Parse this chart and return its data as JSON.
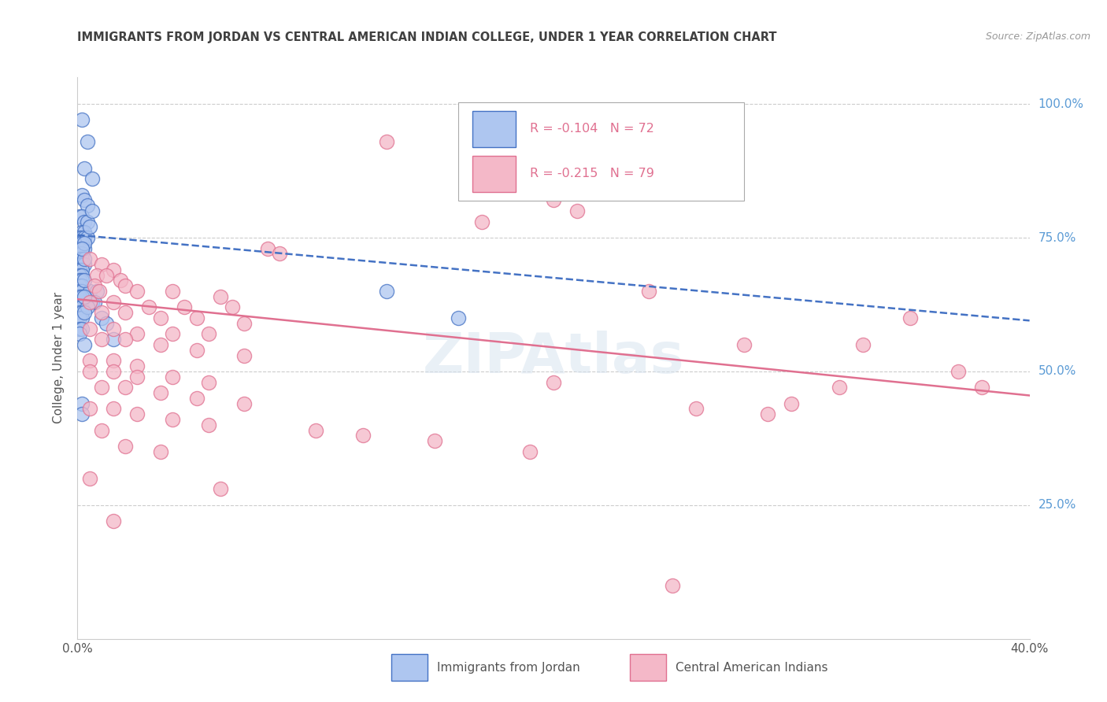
{
  "title": "IMMIGRANTS FROM JORDAN VS CENTRAL AMERICAN INDIAN COLLEGE, UNDER 1 YEAR CORRELATION CHART",
  "source": "Source: ZipAtlas.com",
  "ylabel": "College, Under 1 year",
  "legend_blue_r": "-0.104",
  "legend_blue_n": "72",
  "legend_pink_r": "-0.215",
  "legend_pink_n": "79",
  "legend_label_blue": "Immigrants from Jordan",
  "legend_label_pink": "Central American Indians",
  "xlim": [
    0.0,
    0.4
  ],
  "ylim": [
    0.0,
    1.05
  ],
  "yticks": [
    0.0,
    0.25,
    0.5,
    0.75,
    1.0
  ],
  "yticklabels": [
    "",
    "25.0%",
    "50.0%",
    "75.0%",
    "100.0%"
  ],
  "xticks": [
    0.0,
    0.1,
    0.2,
    0.3,
    0.4
  ],
  "xticklabels": [
    "0.0%",
    "",
    "",
    "",
    "40.0%"
  ],
  "background_color": "#ffffff",
  "grid_color": "#cccccc",
  "blue_face_color": "#aec6f0",
  "blue_edge_color": "#4472c4",
  "pink_face_color": "#f4b8c8",
  "pink_edge_color": "#e07090",
  "right_tick_color": "#5b9bd5",
  "title_color": "#404040",
  "watermark_color": "#d8e4f0",
  "blue_scatter": [
    [
      0.002,
      0.97
    ],
    [
      0.004,
      0.93
    ],
    [
      0.003,
      0.88
    ],
    [
      0.006,
      0.86
    ],
    [
      0.002,
      0.83
    ],
    [
      0.003,
      0.82
    ],
    [
      0.004,
      0.81
    ],
    [
      0.001,
      0.79
    ],
    [
      0.002,
      0.79
    ],
    [
      0.003,
      0.78
    ],
    [
      0.004,
      0.78
    ],
    [
      0.002,
      0.76
    ],
    [
      0.003,
      0.76
    ],
    [
      0.001,
      0.75
    ],
    [
      0.002,
      0.75
    ],
    [
      0.003,
      0.75
    ],
    [
      0.001,
      0.74
    ],
    [
      0.002,
      0.74
    ],
    [
      0.001,
      0.73
    ],
    [
      0.002,
      0.73
    ],
    [
      0.003,
      0.73
    ],
    [
      0.001,
      0.72
    ],
    [
      0.002,
      0.72
    ],
    [
      0.001,
      0.71
    ],
    [
      0.002,
      0.71
    ],
    [
      0.001,
      0.7
    ],
    [
      0.002,
      0.7
    ],
    [
      0.003,
      0.7
    ],
    [
      0.001,
      0.69
    ],
    [
      0.002,
      0.69
    ],
    [
      0.001,
      0.68
    ],
    [
      0.002,
      0.68
    ],
    [
      0.001,
      0.67
    ],
    [
      0.002,
      0.67
    ],
    [
      0.001,
      0.66
    ],
    [
      0.002,
      0.66
    ],
    [
      0.001,
      0.65
    ],
    [
      0.002,
      0.65
    ],
    [
      0.005,
      0.65
    ],
    [
      0.001,
      0.64
    ],
    [
      0.002,
      0.64
    ],
    [
      0.006,
      0.63
    ],
    [
      0.001,
      0.62
    ],
    [
      0.002,
      0.62
    ],
    [
      0.001,
      0.61
    ],
    [
      0.002,
      0.61
    ],
    [
      0.001,
      0.6
    ],
    [
      0.002,
      0.6
    ],
    [
      0.01,
      0.6
    ],
    [
      0.001,
      0.58
    ],
    [
      0.002,
      0.58
    ],
    [
      0.001,
      0.57
    ],
    [
      0.003,
      0.55
    ],
    [
      0.002,
      0.44
    ],
    [
      0.002,
      0.42
    ],
    [
      0.008,
      0.65
    ],
    [
      0.012,
      0.59
    ],
    [
      0.007,
      0.63
    ],
    [
      0.003,
      0.67
    ],
    [
      0.004,
      0.62
    ],
    [
      0.003,
      0.61
    ],
    [
      0.015,
      0.56
    ],
    [
      0.003,
      0.64
    ],
    [
      0.004,
      0.75
    ],
    [
      0.005,
      0.77
    ],
    [
      0.006,
      0.8
    ],
    [
      0.13,
      0.65
    ],
    [
      0.16,
      0.6
    ],
    [
      0.003,
      0.71
    ],
    [
      0.003,
      0.74
    ],
    [
      0.002,
      0.73
    ]
  ],
  "pink_scatter": [
    [
      0.13,
      0.93
    ],
    [
      0.2,
      0.82
    ],
    [
      0.21,
      0.8
    ],
    [
      0.17,
      0.78
    ],
    [
      0.08,
      0.73
    ],
    [
      0.085,
      0.72
    ],
    [
      0.005,
      0.71
    ],
    [
      0.01,
      0.7
    ],
    [
      0.015,
      0.69
    ],
    [
      0.008,
      0.68
    ],
    [
      0.012,
      0.68
    ],
    [
      0.018,
      0.67
    ],
    [
      0.007,
      0.66
    ],
    [
      0.02,
      0.66
    ],
    [
      0.009,
      0.65
    ],
    [
      0.025,
      0.65
    ],
    [
      0.04,
      0.65
    ],
    [
      0.06,
      0.64
    ],
    [
      0.005,
      0.63
    ],
    [
      0.015,
      0.63
    ],
    [
      0.03,
      0.62
    ],
    [
      0.045,
      0.62
    ],
    [
      0.065,
      0.62
    ],
    [
      0.01,
      0.61
    ],
    [
      0.02,
      0.61
    ],
    [
      0.035,
      0.6
    ],
    [
      0.05,
      0.6
    ],
    [
      0.07,
      0.59
    ],
    [
      0.005,
      0.58
    ],
    [
      0.015,
      0.58
    ],
    [
      0.025,
      0.57
    ],
    [
      0.04,
      0.57
    ],
    [
      0.055,
      0.57
    ],
    [
      0.01,
      0.56
    ],
    [
      0.02,
      0.56
    ],
    [
      0.035,
      0.55
    ],
    [
      0.05,
      0.54
    ],
    [
      0.07,
      0.53
    ],
    [
      0.005,
      0.52
    ],
    [
      0.015,
      0.52
    ],
    [
      0.025,
      0.51
    ],
    [
      0.24,
      0.65
    ],
    [
      0.28,
      0.55
    ],
    [
      0.33,
      0.55
    ],
    [
      0.35,
      0.6
    ],
    [
      0.37,
      0.5
    ],
    [
      0.38,
      0.47
    ],
    [
      0.005,
      0.5
    ],
    [
      0.015,
      0.5
    ],
    [
      0.025,
      0.49
    ],
    [
      0.04,
      0.49
    ],
    [
      0.055,
      0.48
    ],
    [
      0.01,
      0.47
    ],
    [
      0.02,
      0.47
    ],
    [
      0.035,
      0.46
    ],
    [
      0.05,
      0.45
    ],
    [
      0.07,
      0.44
    ],
    [
      0.005,
      0.43
    ],
    [
      0.015,
      0.43
    ],
    [
      0.025,
      0.42
    ],
    [
      0.04,
      0.41
    ],
    [
      0.055,
      0.4
    ],
    [
      0.01,
      0.39
    ],
    [
      0.1,
      0.39
    ],
    [
      0.12,
      0.38
    ],
    [
      0.15,
      0.37
    ],
    [
      0.02,
      0.36
    ],
    [
      0.035,
      0.35
    ],
    [
      0.19,
      0.35
    ],
    [
      0.005,
      0.3
    ],
    [
      0.06,
      0.28
    ],
    [
      0.015,
      0.22
    ],
    [
      0.25,
      0.1
    ],
    [
      0.2,
      0.48
    ],
    [
      0.32,
      0.47
    ],
    [
      0.3,
      0.44
    ],
    [
      0.26,
      0.43
    ],
    [
      0.29,
      0.42
    ]
  ],
  "blue_trend": [
    0.0,
    0.755,
    0.4,
    0.595
  ],
  "pink_trend": [
    0.0,
    0.635,
    0.4,
    0.455
  ]
}
